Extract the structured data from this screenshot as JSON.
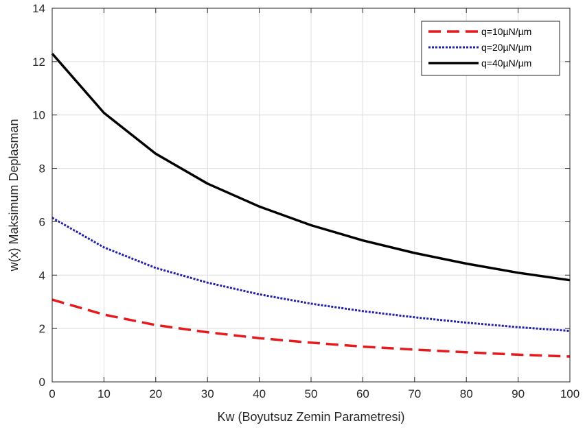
{
  "chart_data": {
    "type": "line",
    "xlabel": "Kw (Boyutsuz Zemin Parametresi)",
    "ylabel": "w(x) Maksimum Deplasman",
    "xlim": [
      0,
      100
    ],
    "ylim": [
      0,
      14
    ],
    "x_ticks": [
      0,
      10,
      20,
      30,
      40,
      50,
      60,
      70,
      80,
      90,
      100
    ],
    "y_ticks": [
      0,
      2,
      4,
      6,
      8,
      10,
      12,
      14
    ],
    "grid": true,
    "legend_position": "top-right",
    "x": [
      0,
      10,
      20,
      30,
      40,
      50,
      60,
      70,
      80,
      90,
      100
    ],
    "series": [
      {
        "name": "q=10µN/µm",
        "color": "#e41a1c",
        "style": "dashed",
        "values": [
          3.08,
          2.52,
          2.13,
          1.86,
          1.64,
          1.47,
          1.32,
          1.21,
          1.11,
          1.02,
          0.95
        ]
      },
      {
        "name": "q=20µN/µm",
        "color": "#1f1fa8",
        "style": "dotted",
        "values": [
          6.15,
          5.04,
          4.27,
          3.72,
          3.28,
          2.93,
          2.65,
          2.42,
          2.22,
          2.05,
          1.91
        ]
      },
      {
        "name": "q=40µN/µm",
        "color": "#000000",
        "style": "solid",
        "values": [
          12.3,
          10.08,
          8.55,
          7.43,
          6.57,
          5.87,
          5.3,
          4.83,
          4.43,
          4.09,
          3.81
        ]
      }
    ]
  }
}
